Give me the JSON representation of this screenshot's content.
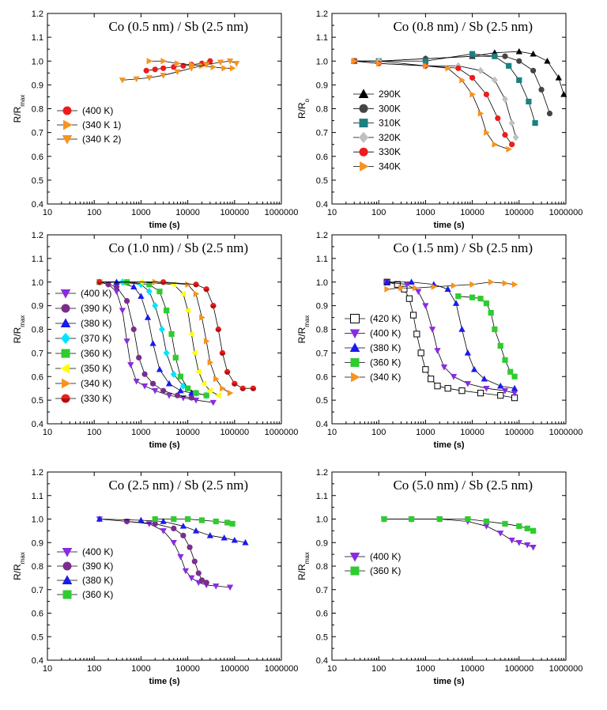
{
  "chart_data": [
    {
      "type": "scatter",
      "title": "Co (0.5 nm) / Sb (2.5 nm)",
      "xlabel": "time (s)",
      "ylabel": "R/R",
      "ylabel_sub": "max",
      "xscale": "log",
      "xlim": [
        10,
        1000000
      ],
      "ylim": [
        0.4,
        1.2
      ],
      "xticks": [
        "10",
        "100",
        "1000",
        "10000",
        "100000",
        "1000000"
      ],
      "yticks": [
        "0.4",
        "0.5",
        "0.6",
        "0.7",
        "0.8",
        "0.9",
        "1.0",
        "1.1",
        "1.2"
      ],
      "legend_position": "left",
      "series": [
        {
          "name": "(400 K)",
          "color": "#ee1c1c",
          "marker": "circle",
          "x": [
            1300,
            2000,
            3000,
            5000,
            8000,
            12000,
            20000,
            30000
          ],
          "y": [
            0.96,
            0.965,
            0.97,
            0.975,
            0.98,
            0.985,
            0.99,
            1.0
          ]
        },
        {
          "name": "(340 K  1)",
          "color": "#f7931e",
          "marker": "tri-right",
          "x": [
            1500,
            3000,
            6000,
            12000,
            20000,
            35000,
            60000,
            90000
          ],
          "y": [
            1.0,
            1.0,
            0.99,
            0.985,
            0.98,
            0.975,
            0.97,
            0.97
          ]
        },
        {
          "name": "(340 K  2)",
          "color": "#f7931e",
          "marker": "tri-down",
          "x": [
            400,
            800,
            1500,
            3000,
            6000,
            12000,
            25000,
            50000,
            80000,
            110000
          ],
          "y": [
            0.92,
            0.925,
            0.93,
            0.94,
            0.955,
            0.97,
            0.985,
            0.995,
            1.0,
            0.99
          ]
        }
      ]
    },
    {
      "type": "scatter",
      "title": "Co (0.8 nm) / Sb (2.5 nm)",
      "xlabel": "time (s)",
      "ylabel": "R/R",
      "ylabel_sub": "o",
      "xscale": "log",
      "xlim": [
        10,
        1000000
      ],
      "ylim": [
        0.4,
        1.2
      ],
      "xticks": [
        "10",
        "100",
        "1000",
        "10000",
        "100000",
        "1000000"
      ],
      "yticks": [
        "0.4",
        "0.5",
        "0.6",
        "0.7",
        "0.8",
        "0.9",
        "1.0",
        "1.1",
        "1.2"
      ],
      "legend_position": "left",
      "series": [
        {
          "name": "290K",
          "color": "#000000",
          "marker": "tri-up",
          "x": [
            30,
            100,
            1000,
            10000,
            30000,
            100000,
            200000,
            400000,
            700000,
            900000
          ],
          "y": [
            1.0,
            1.0,
            1.01,
            1.02,
            1.035,
            1.04,
            1.03,
            1.0,
            0.93,
            0.86
          ]
        },
        {
          "name": "300K",
          "color": "#444444",
          "marker": "circle",
          "x": [
            30,
            100,
            1000,
            10000,
            50000,
            100000,
            200000,
            300000,
            450000
          ],
          "y": [
            1.0,
            1.0,
            1.01,
            1.02,
            1.02,
            1.0,
            0.96,
            0.88,
            0.78
          ]
        },
        {
          "name": "310K",
          "color": "#1a8080",
          "marker": "square",
          "x": [
            30,
            100,
            1000,
            10000,
            30000,
            60000,
            100000,
            160000,
            220000
          ],
          "y": [
            1.0,
            1.0,
            1.0,
            1.03,
            1.02,
            0.98,
            0.92,
            0.83,
            0.74
          ]
        },
        {
          "name": "320K",
          "color": "#c0c0c0",
          "marker": "diamond",
          "x": [
            30,
            100,
            1000,
            5000,
            15000,
            30000,
            50000,
            70000,
            85000
          ],
          "y": [
            1.0,
            1.0,
            0.98,
            0.98,
            0.96,
            0.92,
            0.84,
            0.74,
            0.68
          ]
        },
        {
          "name": "330K",
          "color": "#ee1c1c",
          "marker": "circle",
          "x": [
            30,
            100,
            1000,
            5000,
            10000,
            20000,
            35000,
            50000,
            70000
          ],
          "y": [
            1.0,
            0.99,
            0.98,
            0.97,
            0.93,
            0.86,
            0.76,
            0.69,
            0.65
          ]
        },
        {
          "name": "340K",
          "color": "#f7931e",
          "marker": "tri-right",
          "x": [
            30,
            100,
            1000,
            3000,
            6000,
            10000,
            15000,
            20000,
            30000,
            60000
          ],
          "y": [
            1.0,
            0.99,
            0.98,
            0.97,
            0.92,
            0.86,
            0.78,
            0.7,
            0.65,
            0.63
          ]
        }
      ]
    },
    {
      "type": "scatter",
      "title": "Co (1.0 nm) / Sb (2.5 nm)",
      "xlabel": "time (s)",
      "ylabel": "R/R",
      "ylabel_sub": "max",
      "xscale": "log",
      "xlim": [
        10,
        1000000
      ],
      "ylim": [
        0.4,
        1.2
      ],
      "xticks": [
        "10",
        "100",
        "1000",
        "10000",
        "100000",
        "1000000"
      ],
      "yticks": [
        "0.4",
        "0.5",
        "0.6",
        "0.7",
        "0.8",
        "0.9",
        "1.0",
        "1.1",
        "1.2"
      ],
      "legend_position": "left",
      "series": [
        {
          "name": "(400 K)",
          "color": "#8a2be2",
          "marker": "tri-down",
          "x": [
            130,
            200,
            300,
            400,
            500,
            600,
            800,
            1200,
            2000,
            4000,
            8000,
            15000,
            35000
          ],
          "y": [
            1.0,
            0.99,
            0.96,
            0.88,
            0.75,
            0.65,
            0.58,
            0.56,
            0.54,
            0.52,
            0.51,
            0.5,
            0.49
          ]
        },
        {
          "name": "(390 K)",
          "color": "#7b2d8e",
          "marker": "circle",
          "x": [
            130,
            200,
            300,
            500,
            700,
            900,
            1200,
            1800,
            3000,
            6000,
            12000
          ],
          "y": [
            1.0,
            0.99,
            0.98,
            0.92,
            0.8,
            0.68,
            0.61,
            0.57,
            0.54,
            0.52,
            0.51
          ]
        },
        {
          "name": "(380 K)",
          "color": "#1a1aee",
          "marker": "tri-up",
          "x": [
            130,
            300,
            700,
            1000,
            1400,
            1800,
            2500,
            4000,
            7000,
            12000
          ],
          "y": [
            1.0,
            1.0,
            0.98,
            0.94,
            0.85,
            0.74,
            0.63,
            0.57,
            0.54,
            0.53
          ]
        },
        {
          "name": "(370 K)",
          "color": "#00e5ff",
          "marker": "diamond",
          "x": [
            130,
            400,
            1000,
            1500,
            2000,
            2800,
            3500,
            5000,
            8000,
            15000,
            25000
          ],
          "y": [
            1.0,
            1.0,
            0.99,
            0.96,
            0.9,
            0.8,
            0.7,
            0.61,
            0.56,
            0.53,
            0.52
          ]
        },
        {
          "name": "(360 K)",
          "color": "#2ecc2e",
          "marker": "square",
          "x": [
            130,
            500,
            1500,
            2500,
            3500,
            4500,
            5500,
            7000,
            10000,
            15000,
            25000
          ],
          "y": [
            1.0,
            1.0,
            0.99,
            0.96,
            0.88,
            0.78,
            0.68,
            0.6,
            0.55,
            0.53,
            0.52
          ]
        },
        {
          "name": "(350 K)",
          "color": "#ffff00",
          "marker": "tri-left",
          "x": [
            130,
            1000,
            5000,
            8000,
            10000,
            12000,
            14000,
            17000,
            22000,
            30000,
            45000
          ],
          "y": [
            1.0,
            1.0,
            0.99,
            0.95,
            0.88,
            0.78,
            0.7,
            0.62,
            0.57,
            0.54,
            0.52
          ]
        },
        {
          "name": "(340 K)",
          "color": "#f7931e",
          "marker": "tri-right",
          "x": [
            130,
            2000,
            10000,
            15000,
            20000,
            25000,
            30000,
            40000,
            55000,
            80000
          ],
          "y": [
            1.0,
            1.0,
            0.99,
            0.95,
            0.85,
            0.75,
            0.66,
            0.59,
            0.55,
            0.53
          ]
        },
        {
          "name": "(330 K)",
          "color": "#ee1c1c",
          "marker": "half-circle",
          "x": [
            130,
            3000,
            15000,
            25000,
            35000,
            45000,
            55000,
            70000,
            100000,
            150000,
            250000
          ],
          "y": [
            1.0,
            1.0,
            0.99,
            0.97,
            0.9,
            0.8,
            0.7,
            0.62,
            0.57,
            0.55,
            0.55
          ]
        }
      ]
    },
    {
      "type": "scatter",
      "title": "Co (1.5 nm) / Sb (2.5 nm)",
      "xlabel": "time (s)",
      "ylabel": "R/R",
      "ylabel_sub": "max",
      "xscale": "log",
      "xlim": [
        10,
        1000000
      ],
      "ylim": [
        0.4,
        1.2
      ],
      "xticks": [
        "10",
        "100",
        "1000",
        "10000",
        "100000",
        "1000000"
      ],
      "yticks": [
        "0.4",
        "0.5",
        "0.6",
        "0.7",
        "0.8",
        "0.9",
        "1.0",
        "1.1",
        "1.2"
      ],
      "legend_position": "left",
      "series": [
        {
          "name": "(420 K)",
          "color": "#000000",
          "marker": "open-square",
          "x": [
            150,
            250,
            350,
            450,
            550,
            650,
            800,
            1000,
            1300,
            1800,
            3000,
            6000,
            15000,
            40000,
            80000
          ],
          "y": [
            1.0,
            0.99,
            0.97,
            0.93,
            0.86,
            0.78,
            0.7,
            0.63,
            0.59,
            0.56,
            0.55,
            0.54,
            0.53,
            0.52,
            0.51
          ]
        },
        {
          "name": "(400 K)",
          "color": "#8a2be2",
          "marker": "tri-down",
          "x": [
            150,
            400,
            700,
            1000,
            1400,
            1800,
            2500,
            4000,
            8000,
            20000,
            50000,
            80000
          ],
          "y": [
            1.0,
            0.99,
            0.96,
            0.9,
            0.8,
            0.71,
            0.64,
            0.6,
            0.57,
            0.55,
            0.54,
            0.53
          ]
        },
        {
          "name": "(380 K)",
          "color": "#1a1aee",
          "marker": "tri-up",
          "x": [
            150,
            500,
            1500,
            3000,
            4500,
            6000,
            8000,
            11000,
            18000,
            40000,
            80000
          ],
          "y": [
            1.0,
            1.0,
            0.99,
            0.97,
            0.91,
            0.8,
            0.7,
            0.63,
            0.59,
            0.56,
            0.55
          ]
        },
        {
          "name": "(360 K)",
          "color": "#2ecc2e",
          "marker": "square",
          "x": [
            5000,
            10000,
            15000,
            20000,
            25000,
            30000,
            40000,
            50000,
            65000,
            80000
          ],
          "y": [
            0.94,
            0.935,
            0.93,
            0.91,
            0.87,
            0.8,
            0.73,
            0.67,
            0.62,
            0.6
          ]
        },
        {
          "name": "(340 K)",
          "color": "#f7931e",
          "marker": "tri-right",
          "x": [
            150,
            300,
            600,
            1500,
            4000,
            10000,
            25000,
            50000,
            80000
          ],
          "y": [
            0.97,
            0.975,
            0.975,
            0.98,
            0.985,
            0.99,
            1.0,
            0.995,
            0.99
          ]
        }
      ]
    },
    {
      "type": "scatter",
      "title": "Co (2.5 nm) / Sb (2.5 nm)",
      "xlabel": "time (s)",
      "ylabel": "R/R",
      "ylabel_sub": "max",
      "xscale": "log",
      "xlim": [
        10,
        1000000
      ],
      "ylim": [
        0.4,
        1.2
      ],
      "xticks": [
        "10",
        "100",
        "1000",
        "10000",
        "100000",
        "1000000"
      ],
      "yticks": [
        "0.4",
        "0.5",
        "0.6",
        "0.7",
        "0.8",
        "0.9",
        "1.0",
        "1.1",
        "1.2"
      ],
      "legend_position": "left",
      "series": [
        {
          "name": "(400 K)",
          "color": "#8a2be2",
          "marker": "tri-down",
          "x": [
            130,
            500,
            1500,
            3000,
            5000,
            7000,
            9000,
            12000,
            17000,
            25000,
            40000,
            80000
          ],
          "y": [
            1.0,
            0.99,
            0.98,
            0.95,
            0.9,
            0.84,
            0.78,
            0.75,
            0.73,
            0.72,
            0.715,
            0.71
          ]
        },
        {
          "name": "(390 K)",
          "color": "#7b2d8e",
          "marker": "circle",
          "x": [
            500,
            2000,
            5000,
            8000,
            11000,
            14000,
            17000,
            20000,
            25000
          ],
          "y": [
            0.99,
            0.98,
            0.96,
            0.93,
            0.88,
            0.82,
            0.77,
            0.74,
            0.73
          ]
        },
        {
          "name": "(380 K)",
          "color": "#1a1aee",
          "marker": "tri-up",
          "x": [
            130,
            1000,
            3000,
            8000,
            15000,
            30000,
            60000,
            100000,
            170000
          ],
          "y": [
            1.0,
            0.995,
            0.99,
            0.97,
            0.95,
            0.93,
            0.92,
            0.91,
            0.9
          ]
        },
        {
          "name": "(360 K)",
          "color": "#2ecc2e",
          "marker": "square",
          "x": [
            2000,
            5000,
            10000,
            20000,
            40000,
            70000,
            90000
          ],
          "y": [
            1.0,
            1.0,
            1.0,
            0.995,
            0.99,
            0.985,
            0.98
          ]
        }
      ]
    },
    {
      "type": "scatter",
      "title": "Co (5.0 nm) / Sb (2.5 nm)",
      "xlabel": "time (s)",
      "ylabel": "R/R",
      "ylabel_sub": "max",
      "xscale": "log",
      "xlim": [
        10,
        1000000
      ],
      "ylim": [
        0.4,
        1.2
      ],
      "xticks": [
        "10",
        "100",
        "1000",
        "10000",
        "100000",
        "1000000"
      ],
      "yticks": [
        "0.4",
        "0.5",
        "0.6",
        "0.7",
        "0.8",
        "0.9",
        "1.0",
        "1.1",
        "1.2"
      ],
      "legend_position": "left",
      "series": [
        {
          "name": "(400 K)",
          "color": "#8a2be2",
          "marker": "tri-down",
          "x": [
            130,
            500,
            2000,
            8000,
            20000,
            40000,
            70000,
            100000,
            150000,
            200000
          ],
          "y": [
            1.0,
            1.0,
            1.0,
            0.99,
            0.97,
            0.94,
            0.91,
            0.9,
            0.89,
            0.88
          ]
        },
        {
          "name": "(360 K)",
          "color": "#2ecc2e",
          "marker": "square",
          "x": [
            130,
            500,
            2000,
            8000,
            20000,
            50000,
            100000,
            150000,
            200000
          ],
          "y": [
            1.0,
            1.0,
            1.0,
            1.0,
            0.99,
            0.98,
            0.97,
            0.96,
            0.95
          ]
        }
      ]
    }
  ]
}
